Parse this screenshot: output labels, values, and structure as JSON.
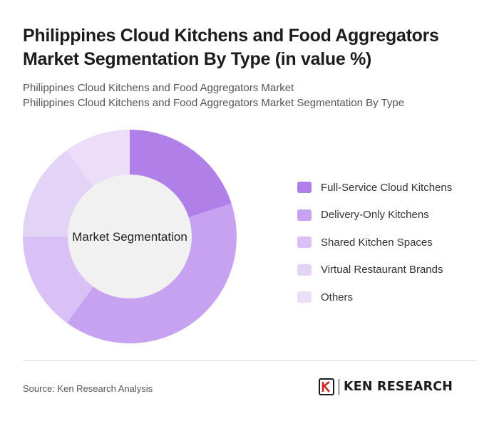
{
  "title": "Philippines Cloud Kitchens and Food Aggregators Market Segmentation By Type (in value %)",
  "subtitle_lines": [
    "Philippines Cloud Kitchens and Food Aggregators Market",
    "Philippines Cloud Kitchens and Food Aggregators Market Segmentation By Type"
  ],
  "chart_data": {
    "type": "pie",
    "variant": "donut",
    "center_label": "Market Segmentation",
    "categories": [
      "Full-Service Cloud Kitchens",
      "Delivery-Only Kitchens",
      "Shared Kitchen Spaces",
      "Virtual Restaurant Brands",
      "Others"
    ],
    "values": [
      20,
      40,
      15,
      15,
      10
    ],
    "colors": [
      "#b07fe8",
      "#c7a2f0",
      "#d9c0f5",
      "#e3d3f7",
      "#ebdef9"
    ],
    "legend_position": "right",
    "title": "",
    "xlabel": "",
    "ylabel": ""
  },
  "footer": {
    "source": "Source: Ken Research Analysis",
    "logo_text": "KEN RESEARCH",
    "logo_mark": "K"
  }
}
